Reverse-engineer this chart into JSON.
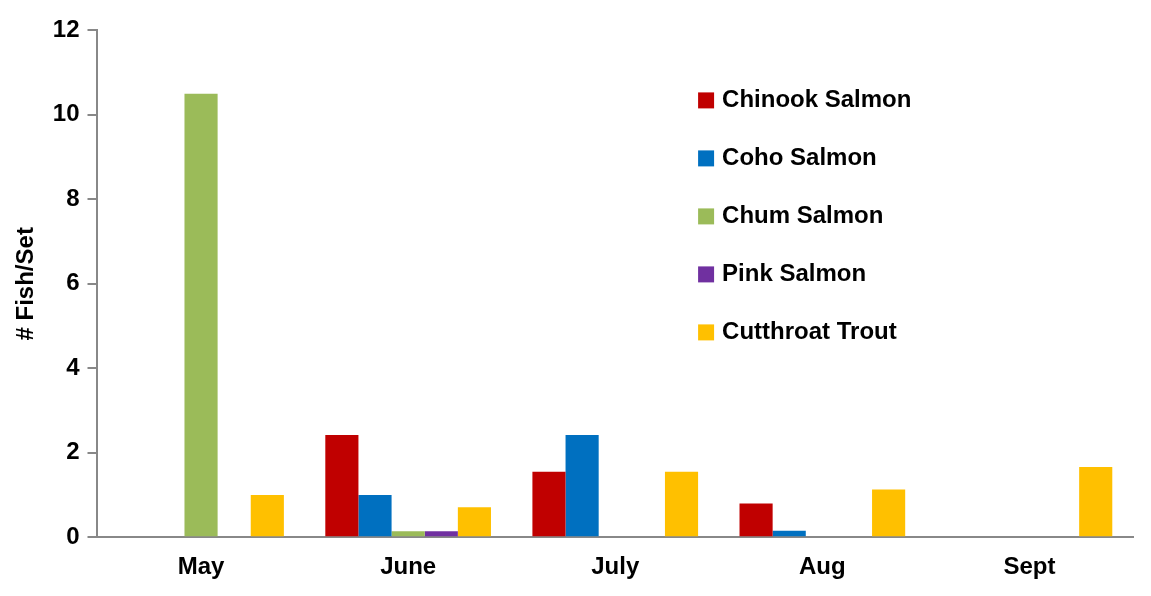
{
  "chart_data": {
    "type": "bar",
    "ylabel": "# Fish/Set",
    "categories": [
      "May",
      "June",
      "July",
      "Aug",
      "Sept"
    ],
    "series": [
      {
        "name": "Chinook Salmon",
        "color": "#c00000",
        "values": [
          0,
          2.42,
          1.55,
          0.8,
          0
        ]
      },
      {
        "name": "Coho Salmon",
        "color": "#0070c0",
        "values": [
          0,
          1.0,
          2.42,
          0.15,
          0
        ]
      },
      {
        "name": "Chum Salmon",
        "color": "#9bbb59",
        "values": [
          10.5,
          0.14,
          0,
          0,
          0
        ]
      },
      {
        "name": "Pink Salmon",
        "color": "#7030a0",
        "values": [
          0,
          0.14,
          0,
          0,
          0
        ]
      },
      {
        "name": "Cutthroat Trout",
        "color": "#ffc000",
        "values": [
          1.0,
          0.71,
          1.55,
          1.13,
          1.66
        ]
      }
    ],
    "ylim": [
      0,
      12
    ],
    "yticks": [
      0,
      2,
      4,
      6,
      8,
      10,
      12
    ],
    "grid": false,
    "legend": "top right"
  }
}
